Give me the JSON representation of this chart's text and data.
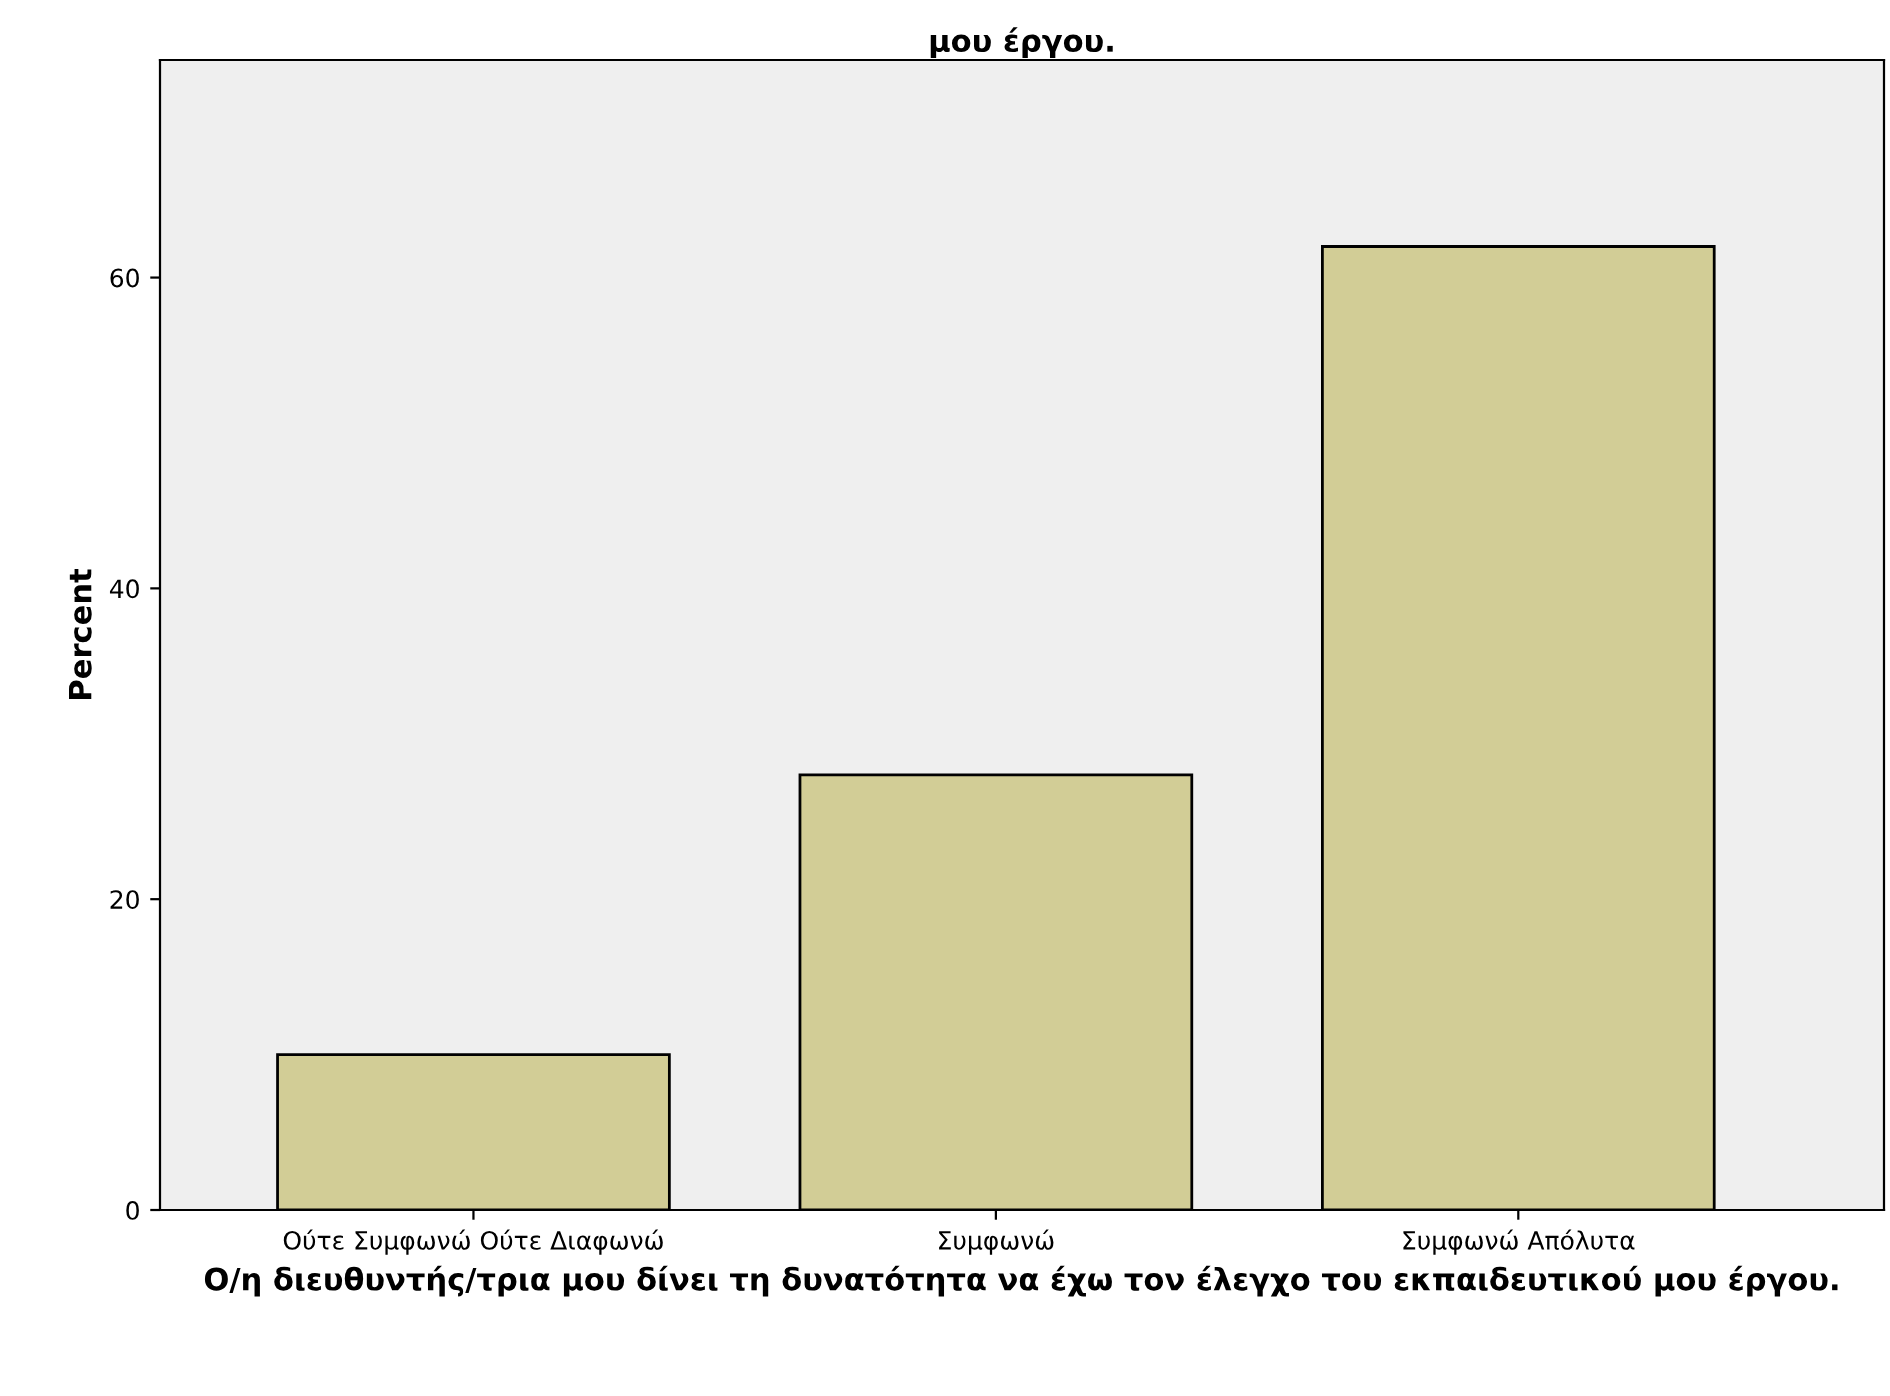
{
  "chart_data": {
    "type": "bar",
    "title": "μου έργου.",
    "xlabel": "Ο/η διευθυντής/τρια μου δίνει τη δυνατότητα να έχω τον έλεγχο του εκπαιδευτικού μου έργου.",
    "ylabel": "Percent",
    "categories": [
      "Ούτε Συμφωνώ Ούτε Διαφωνώ",
      "Συμφωνώ",
      "Συμφωνώ Απόλυτα"
    ],
    "values": [
      10,
      28,
      62
    ],
    "color": "#d2cd96",
    "ylim": [
      0,
      74
    ],
    "yticks": [
      0,
      20,
      40,
      60
    ],
    "grid": false
  }
}
